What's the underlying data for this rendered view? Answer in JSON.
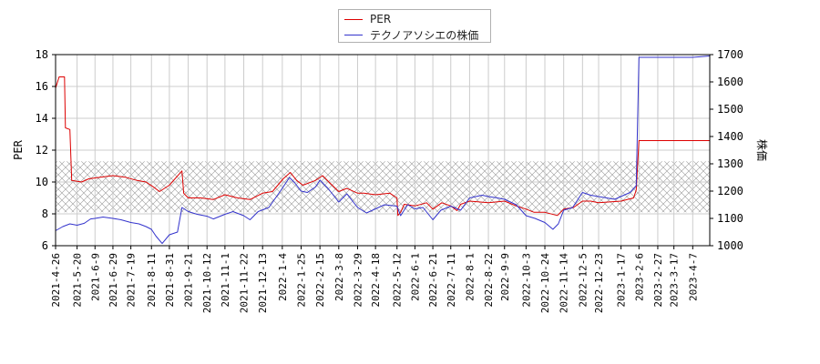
{
  "chart_data": {
    "type": "line",
    "ylabel_left": "PER",
    "ylabel_right": "株価",
    "ylim_left": [
      6,
      18
    ],
    "ylim_right": [
      1000,
      1700
    ],
    "yticks_left": [
      "6",
      "8",
      "10",
      "12",
      "14",
      "16",
      "18"
    ],
    "yticks_right": [
      "1000",
      "1100",
      "1200",
      "1300",
      "1400",
      "1500",
      "1600",
      "1700"
    ],
    "grid": true,
    "legend_position": "top-center",
    "xlim": [
      "2021-04-26",
      "2023-04-26"
    ],
    "xticks": [
      "2021-4-26",
      "2021-5-20",
      "2021-6-9",
      "2021-6-29",
      "2021-7-19",
      "2021-8-11",
      "2021-8-31",
      "2021-9-21",
      "2021-10-12",
      "2021-11-1",
      "2021-11-22",
      "2021-12-13",
      "2022-1-4",
      "2022-1-25",
      "2022-2-15",
      "2022-3-8",
      "2022-3-29",
      "2022-4-18",
      "2022-5-12",
      "2022-6-1",
      "2022-6-21",
      "2022-7-11",
      "2022-8-1",
      "2022-8-22",
      "2022-9-9",
      "2022-10-3",
      "2022-10-24",
      "2022-11-14",
      "2022-12-5",
      "2022-12-23",
      "2023-1-17",
      "2023-2-6",
      "2023-2-27",
      "2023-3-17",
      "2023-4-7"
    ],
    "band": {
      "y_low": 8.1,
      "y_high": 11.3
    },
    "series": [
      {
        "name": "PER",
        "axis": "left",
        "color": "#dd0000",
        "points": [
          [
            "2021-04-26",
            15.9
          ],
          [
            "2021-04-30",
            16.6
          ],
          [
            "2021-05-06",
            16.6
          ],
          [
            "2021-05-07",
            13.4
          ],
          [
            "2021-05-12",
            13.3
          ],
          [
            "2021-05-14",
            10.1
          ],
          [
            "2021-05-25",
            10.0
          ],
          [
            "2021-06-02",
            10.2
          ],
          [
            "2021-06-15",
            10.3
          ],
          [
            "2021-06-29",
            10.4
          ],
          [
            "2021-07-13",
            10.3
          ],
          [
            "2021-07-26",
            10.1
          ],
          [
            "2021-08-05",
            10.0
          ],
          [
            "2021-08-13",
            9.7
          ],
          [
            "2021-08-20",
            9.4
          ],
          [
            "2021-08-31",
            9.8
          ],
          [
            "2021-09-14",
            10.7
          ],
          [
            "2021-09-16",
            9.3
          ],
          [
            "2021-09-21",
            9.0
          ],
          [
            "2021-10-05",
            9.0
          ],
          [
            "2021-10-19",
            8.9
          ],
          [
            "2021-11-01",
            9.2
          ],
          [
            "2021-11-15",
            9.0
          ],
          [
            "2021-11-29",
            8.9
          ],
          [
            "2021-12-13",
            9.3
          ],
          [
            "2021-12-24",
            9.4
          ],
          [
            "2022-01-05",
            10.2
          ],
          [
            "2022-01-13",
            10.6
          ],
          [
            "2022-01-20",
            10.1
          ],
          [
            "2022-01-27",
            9.8
          ],
          [
            "2022-02-10",
            10.1
          ],
          [
            "2022-02-18",
            10.4
          ],
          [
            "2022-02-25",
            10.0
          ],
          [
            "2022-03-08",
            9.4
          ],
          [
            "2022-03-17",
            9.6
          ],
          [
            "2022-03-29",
            9.3
          ],
          [
            "2022-04-05",
            9.3
          ],
          [
            "2022-04-18",
            9.2
          ],
          [
            "2022-05-04",
            9.3
          ],
          [
            "2022-05-12",
            9.0
          ],
          [
            "2022-05-13",
            7.9
          ],
          [
            "2022-05-16",
            8.1
          ],
          [
            "2022-05-20",
            8.6
          ],
          [
            "2022-06-01",
            8.5
          ],
          [
            "2022-06-14",
            8.7
          ],
          [
            "2022-06-21",
            8.3
          ],
          [
            "2022-07-01",
            8.7
          ],
          [
            "2022-07-11",
            8.5
          ],
          [
            "2022-07-18",
            8.2
          ],
          [
            "2022-07-22",
            8.6
          ],
          [
            "2022-08-01",
            8.8
          ],
          [
            "2022-08-22",
            8.7
          ],
          [
            "2022-09-09",
            8.8
          ],
          [
            "2022-09-22",
            8.5
          ],
          [
            "2022-10-03",
            8.3
          ],
          [
            "2022-10-12",
            8.1
          ],
          [
            "2022-10-24",
            8.1
          ],
          [
            "2022-11-07",
            7.9
          ],
          [
            "2022-11-14",
            8.3
          ],
          [
            "2022-11-25",
            8.4
          ],
          [
            "2022-12-05",
            8.8
          ],
          [
            "2022-12-14",
            8.8
          ],
          [
            "2022-12-23",
            8.7
          ],
          [
            "2023-01-17",
            8.8
          ],
          [
            "2023-01-31",
            9.0
          ],
          [
            "2023-02-03",
            9.5
          ],
          [
            "2023-02-06",
            12.6
          ],
          [
            "2023-02-27",
            12.6
          ],
          [
            "2023-03-17",
            12.6
          ],
          [
            "2023-04-07",
            12.6
          ],
          [
            "2023-04-26",
            12.6
          ]
        ]
      },
      {
        "name": "テクノアソシエの株価",
        "axis": "right",
        "color": "#3333cc",
        "points": [
          [
            "2021-04-26",
            1055
          ],
          [
            "2021-05-04",
            1070
          ],
          [
            "2021-05-12",
            1080
          ],
          [
            "2021-05-20",
            1075
          ],
          [
            "2021-05-28",
            1082
          ],
          [
            "2021-06-04",
            1098
          ],
          [
            "2021-06-09",
            1100
          ],
          [
            "2021-06-18",
            1105
          ],
          [
            "2021-06-29",
            1100
          ],
          [
            "2021-07-08",
            1095
          ],
          [
            "2021-07-19",
            1085
          ],
          [
            "2021-07-28",
            1080
          ],
          [
            "2021-08-05",
            1070
          ],
          [
            "2021-08-11",
            1060
          ],
          [
            "2021-08-16",
            1035
          ],
          [
            "2021-08-23",
            1008
          ],
          [
            "2021-08-31",
            1040
          ],
          [
            "2021-09-09",
            1050
          ],
          [
            "2021-09-14",
            1140
          ],
          [
            "2021-09-21",
            1125
          ],
          [
            "2021-10-01",
            1115
          ],
          [
            "2021-10-12",
            1108
          ],
          [
            "2021-10-19",
            1098
          ],
          [
            "2021-11-01",
            1115
          ],
          [
            "2021-11-10",
            1125
          ],
          [
            "2021-11-22",
            1110
          ],
          [
            "2021-11-29",
            1095
          ],
          [
            "2021-12-08",
            1125
          ],
          [
            "2021-12-20",
            1140
          ],
          [
            "2022-01-04",
            1210
          ],
          [
            "2022-01-12",
            1250
          ],
          [
            "2022-01-18",
            1230
          ],
          [
            "2022-01-25",
            1200
          ],
          [
            "2022-02-01",
            1195
          ],
          [
            "2022-02-10",
            1215
          ],
          [
            "2022-02-15",
            1240
          ],
          [
            "2022-02-24",
            1210
          ],
          [
            "2022-03-08",
            1160
          ],
          [
            "2022-03-17",
            1190
          ],
          [
            "2022-03-29",
            1140
          ],
          [
            "2022-04-08",
            1120
          ],
          [
            "2022-04-18",
            1135
          ],
          [
            "2022-04-28",
            1150
          ],
          [
            "2022-05-12",
            1145
          ],
          [
            "2022-05-16",
            1110
          ],
          [
            "2022-05-24",
            1150
          ],
          [
            "2022-06-01",
            1135
          ],
          [
            "2022-06-10",
            1140
          ],
          [
            "2022-06-21",
            1095
          ],
          [
            "2022-06-30",
            1130
          ],
          [
            "2022-07-11",
            1145
          ],
          [
            "2022-07-22",
            1130
          ],
          [
            "2022-08-01",
            1175
          ],
          [
            "2022-08-15",
            1185
          ],
          [
            "2022-08-22",
            1180
          ],
          [
            "2022-09-01",
            1175
          ],
          [
            "2022-09-09",
            1170
          ],
          [
            "2022-09-22",
            1150
          ],
          [
            "2022-10-03",
            1110
          ],
          [
            "2022-10-13",
            1100
          ],
          [
            "2022-10-24",
            1085
          ],
          [
            "2022-11-02",
            1060
          ],
          [
            "2022-11-08",
            1080
          ],
          [
            "2022-11-14",
            1130
          ],
          [
            "2022-11-24",
            1140
          ],
          [
            "2022-12-05",
            1195
          ],
          [
            "2022-12-14",
            1185
          ],
          [
            "2022-12-23",
            1180
          ],
          [
            "2023-01-10",
            1170
          ],
          [
            "2023-01-27",
            1195
          ],
          [
            "2023-02-03",
            1220
          ],
          [
            "2023-02-06",
            1690
          ],
          [
            "2023-02-27",
            1690
          ],
          [
            "2023-03-17",
            1690
          ],
          [
            "2023-04-07",
            1690
          ],
          [
            "2023-04-26",
            1695
          ]
        ]
      }
    ]
  }
}
